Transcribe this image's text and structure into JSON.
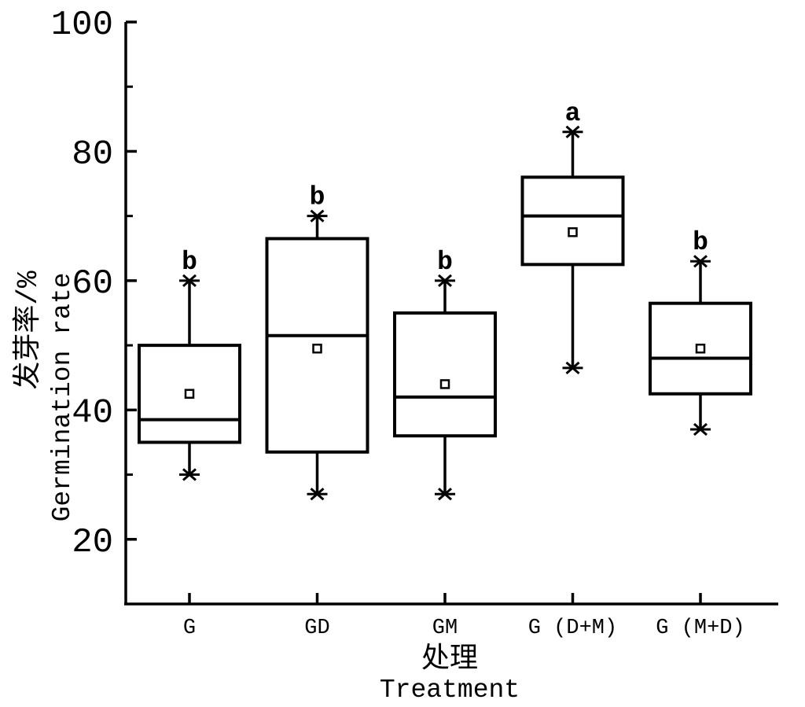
{
  "figure": {
    "background": "#ffffff",
    "line_color": "#000000"
  },
  "axes": {
    "y": {
      "label_cn": "发芽率/%",
      "label_en": "Germination rate",
      "min": 10,
      "max": 100,
      "major_ticks": [
        20,
        40,
        60,
        80,
        100
      ],
      "minor_ticks": [
        30,
        50,
        70,
        90
      ]
    },
    "x": {
      "label_cn": "处理",
      "label_en": "Treatment",
      "categories": [
        "G",
        "GD",
        "GM",
        "G (D+M)",
        "G (M+D)"
      ]
    }
  },
  "chart_data": {
    "type": "boxplot",
    "title": "",
    "xlabel": "处理 Treatment",
    "ylabel": "发芽率/% Germination rate",
    "ylim": [
      10,
      100
    ],
    "grid": false,
    "legend": "none",
    "categories": [
      "G",
      "GD",
      "GM",
      "G (D+M)",
      "G (M+D)"
    ],
    "whisker_cap_marker": "star",
    "mean_marker": "open-square",
    "series": [
      {
        "category": "G",
        "whisker_low": 30,
        "q1": 35,
        "median": 38.5,
        "q3": 50,
        "whisker_high": 60,
        "mean": 42.5,
        "sig_letter": "b"
      },
      {
        "category": "GD",
        "whisker_low": 27,
        "q1": 33.5,
        "median": 51.5,
        "q3": 66.5,
        "whisker_high": 70,
        "mean": 49.5,
        "sig_letter": "b"
      },
      {
        "category": "GM",
        "whisker_low": 27,
        "q1": 36,
        "median": 42,
        "q3": 55,
        "whisker_high": 60,
        "mean": 44,
        "sig_letter": "b"
      },
      {
        "category": "G (D+M)",
        "whisker_low": 46.5,
        "q1": 62.5,
        "median": 70,
        "q3": 76,
        "whisker_high": 83,
        "mean": 67.5,
        "sig_letter": "a"
      },
      {
        "category": "G (M+D)",
        "whisker_low": 37,
        "q1": 42.5,
        "median": 48,
        "q3": 56.5,
        "whisker_high": 63,
        "mean": 49.5,
        "sig_letter": "b"
      }
    ]
  }
}
